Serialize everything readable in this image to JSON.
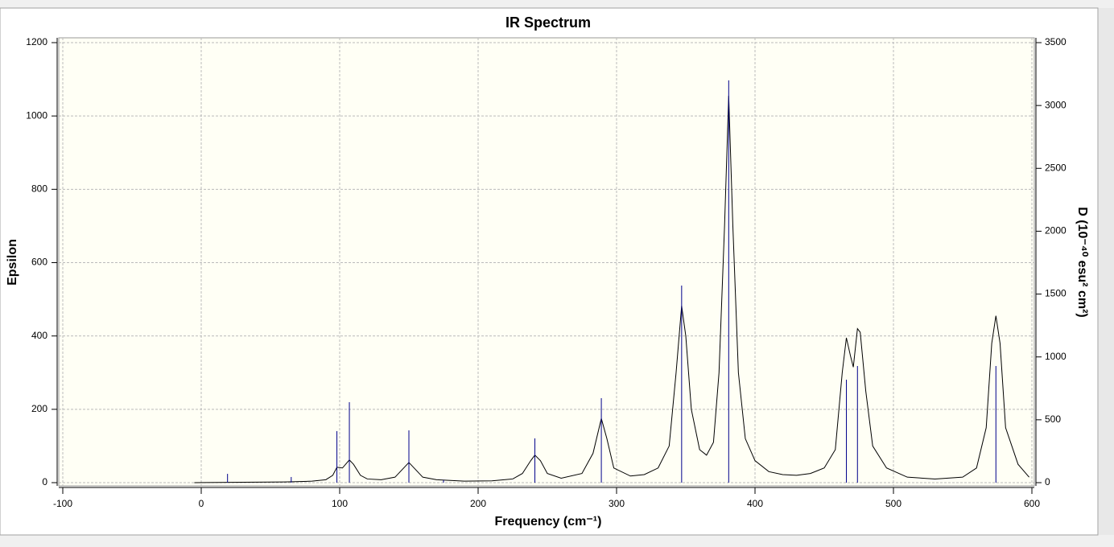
{
  "chart_data": {
    "type": "line",
    "title": "IR Spectrum",
    "xlabel": "Frequency (cm⁻¹)",
    "ylabel": "Epsilon",
    "y2label": "D (10⁻⁴⁰ esu² cm²)",
    "xlim": [
      -100,
      600
    ],
    "xticks": [
      -100,
      0,
      100,
      200,
      300,
      400,
      500,
      600
    ],
    "ylim": [
      0,
      1200
    ],
    "yticks": [
      0,
      200,
      400,
      600,
      800,
      1000,
      1200
    ],
    "y2lim": [
      0,
      3500
    ],
    "y2ticks": [
      0,
      500,
      1000,
      1500,
      2000,
      2500,
      3000,
      3500
    ],
    "grid": true,
    "series": [
      {
        "color": "#000000",
        "x": [
          -5,
          30,
          60,
          80,
          90,
          95,
          98,
          102,
          107,
          110,
          115,
          120,
          130,
          140,
          145,
          150,
          155,
          160,
          170,
          190,
          210,
          225,
          232,
          238,
          241,
          245,
          250,
          260,
          275,
          283,
          289,
          293,
          298,
          310,
          320,
          330,
          338,
          343,
          347,
          350,
          354,
          360,
          365,
          370,
          374,
          378,
          381,
          384,
          388,
          393,
          400,
          410,
          420,
          430,
          440,
          450,
          458,
          463,
          466,
          469,
          471,
          474,
          476,
          480,
          485,
          495,
          510,
          530,
          550,
          560,
          567,
          571,
          574,
          577,
          581,
          590,
          598
        ],
        "values": [
          0,
          1,
          2,
          4,
          8,
          20,
          42,
          40,
          62,
          50,
          20,
          10,
          8,
          15,
          35,
          55,
          35,
          15,
          8,
          4,
          5,
          10,
          25,
          60,
          75,
          60,
          25,
          12,
          25,
          80,
          175,
          120,
          40,
          18,
          22,
          40,
          100,
          300,
          482,
          400,
          200,
          90,
          75,
          110,
          300,
          700,
          1055,
          700,
          300,
          120,
          60,
          30,
          22,
          20,
          25,
          40,
          90,
          300,
          395,
          345,
          315,
          420,
          410,
          250,
          100,
          40,
          15,
          10,
          15,
          40,
          150,
          380,
          455,
          380,
          150,
          50,
          15
        ]
      },
      {
        "color": "#00008b",
        "axis": "y2",
        "sticks": true,
        "x": [
          19,
          65,
          98,
          107,
          150,
          175,
          241,
          289,
          347,
          381,
          466,
          474,
          574
        ],
        "values": [
          70,
          45,
          410,
          640,
          416,
          20,
          352,
          672,
          1568,
          3200,
          819,
          928,
          928
        ]
      }
    ]
  }
}
